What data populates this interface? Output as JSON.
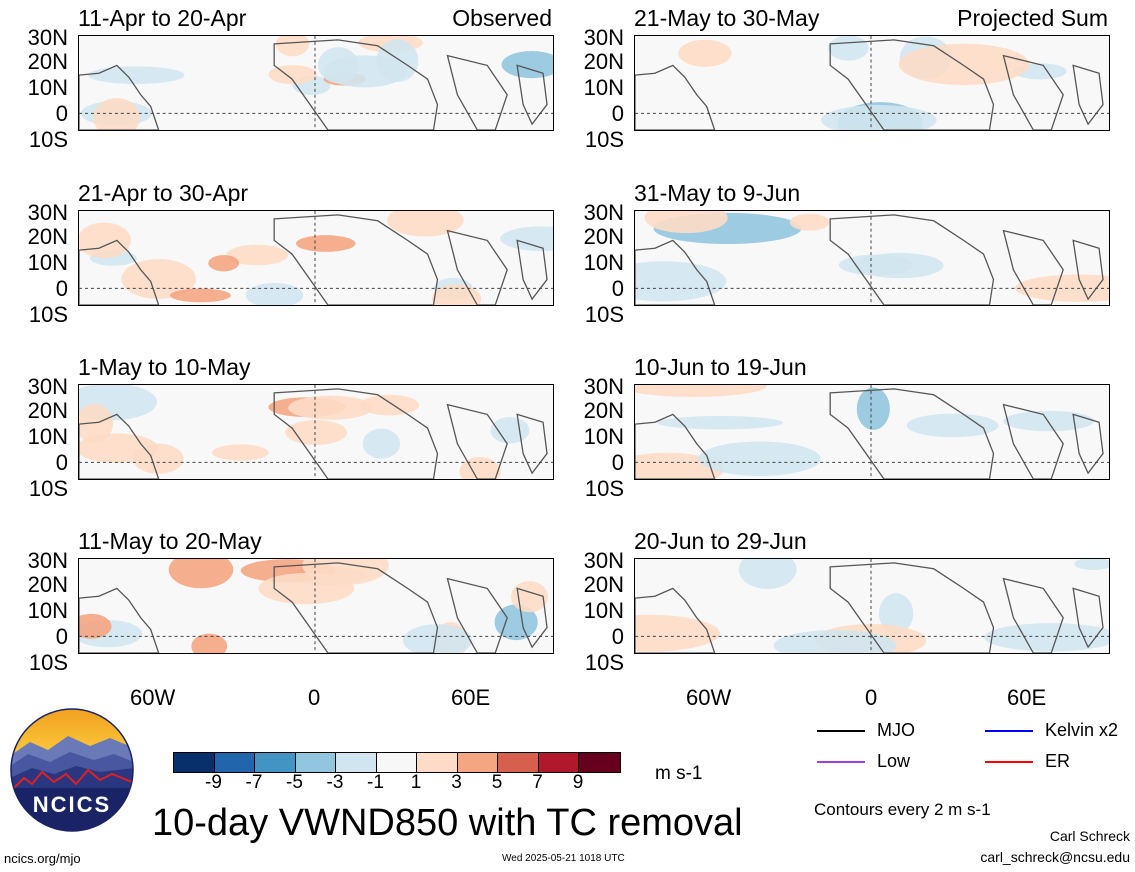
{
  "columns": {
    "left": "Observed",
    "right": "Projected Sum"
  },
  "panels_left": [
    {
      "title": "11-Apr to 20-Apr"
    },
    {
      "title": "21-Apr to 30-Apr"
    },
    {
      "title": "1-May to 10-May"
    },
    {
      "title": "11-May to 20-May"
    }
  ],
  "panels_right": [
    {
      "title": "21-May to 30-May"
    },
    {
      "title": "31-May to 9-Jun"
    },
    {
      "title": "10-Jun to 19-Jun"
    },
    {
      "title": "20-Jun to 29-Jun"
    }
  ],
  "lat_ticks": [
    "30N",
    "20N",
    "10N",
    "0",
    "10S"
  ],
  "lon_ticks": [
    "60W",
    "0",
    "60E"
  ],
  "colorbar": {
    "ticks": [
      "-9",
      "-7",
      "-5",
      "-3",
      "-1",
      "1",
      "3",
      "5",
      "7",
      "9"
    ],
    "colors": [
      "#08306b",
      "#2166ac",
      "#4393c3",
      "#92c5de",
      "#d1e5f0",
      "#f7f7f7",
      "#fddbc7",
      "#f4a582",
      "#d6604d",
      "#b2182b",
      "#67001f"
    ],
    "units": "m s-1"
  },
  "title": "10-day VWND850 with TC removal",
  "legend": [
    {
      "label": "MJO",
      "color": "#000000"
    },
    {
      "label": "Kelvin x2",
      "color": "#0000ff"
    },
    {
      "label": "Low",
      "color": "#a040e0"
    },
    {
      "label": "ER",
      "color": "#ff0000"
    }
  ],
  "contours_note": "Contours every 2 m s-1",
  "author": "Carl Schreck",
  "email": "carl_schreck@ncsu.edu",
  "site": "ncics.org/mjo",
  "timestamp": "Wed 2025-05-21 1018 UTC",
  "logo_text": "NCICS"
}
